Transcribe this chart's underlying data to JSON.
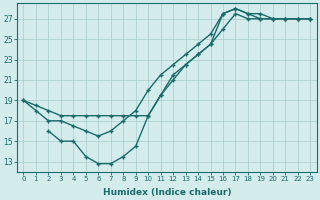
{
  "line1_x": [
    0,
    1,
    2,
    3,
    4,
    5,
    6,
    7,
    8,
    9,
    10,
    11,
    12,
    13,
    14,
    15,
    16,
    17,
    18,
    19,
    20,
    21,
    22,
    23
  ],
  "line1_y": [
    19,
    18.5,
    18,
    17.5,
    17.5,
    17.5,
    17.5,
    17.5,
    17.5,
    17.5,
    17.5,
    19.5,
    21.5,
    22.5,
    23.5,
    24.5,
    26,
    27.5,
    27,
    27,
    27,
    27,
    27,
    27
  ],
  "line2_x": [
    0,
    1,
    2,
    3,
    4,
    5,
    6,
    7,
    8,
    9,
    10,
    11,
    12,
    13,
    14,
    15,
    16,
    17,
    18,
    19,
    20,
    21,
    22,
    23
  ],
  "line2_y": [
    19,
    18,
    17,
    17,
    16.5,
    16,
    15.5,
    16,
    17,
    18,
    20,
    21.5,
    22.5,
    23.5,
    24.5,
    25.5,
    27.5,
    28,
    27.5,
    27.5,
    27,
    27,
    27,
    27
  ],
  "line3_x": [
    2,
    3,
    4,
    5,
    6,
    7,
    8,
    9,
    10,
    11,
    12,
    13,
    14,
    15,
    16,
    17,
    18,
    19,
    20,
    21,
    22,
    23
  ],
  "line3_y": [
    16,
    15,
    15,
    13.5,
    12.8,
    12.8,
    13.5,
    14.5,
    17.5,
    19.5,
    21,
    22.5,
    23.5,
    24.5,
    27.5,
    28,
    27.5,
    27,
    27,
    27,
    27,
    27
  ],
  "color": "#1a6b6b",
  "bg_color": "#d4ecec",
  "grid_color": "#aacccc",
  "xlabel": "Humidex (Indice chaleur)",
  "xlim": [
    -0.5,
    23.5
  ],
  "ylim": [
    12.0,
    28.5
  ],
  "yticks": [
    13,
    15,
    17,
    19,
    21,
    23,
    25,
    27
  ],
  "xticks": [
    0,
    1,
    2,
    3,
    4,
    5,
    6,
    7,
    8,
    9,
    10,
    11,
    12,
    13,
    14,
    15,
    16,
    17,
    18,
    19,
    20,
    21,
    22,
    23
  ]
}
